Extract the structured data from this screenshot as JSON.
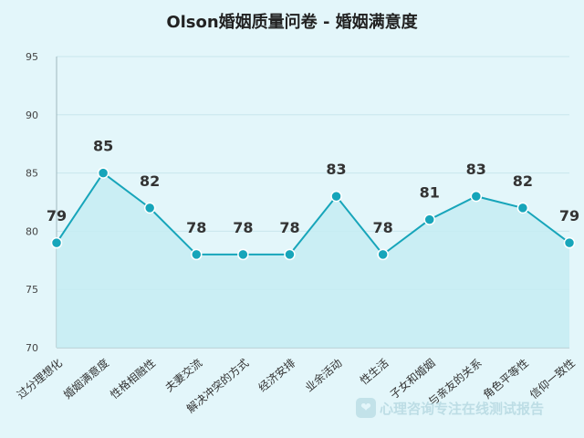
{
  "chart_data": {
    "type": "line",
    "title": "Olson婚姻质量问卷 - 婚姻满意度",
    "xlabel": "",
    "ylabel": "",
    "categories": [
      "过分理想化",
      "婚姻满意度",
      "性格相融性",
      "夫妻交流",
      "解决冲突的方式",
      "经济安排",
      "业余活动",
      "性生活",
      "子女和婚姻",
      "与亲友的关系",
      "角色平等性",
      "信仰一致性"
    ],
    "series": [
      {
        "values": [
          79,
          85,
          82,
          78,
          78,
          78,
          83,
          78,
          81,
          83,
          82,
          79
        ]
      }
    ],
    "ylim": [
      70,
      95
    ],
    "yticks": [
      70,
      75,
      80,
      85,
      90,
      95
    ],
    "grid": true,
    "area_fill": true,
    "colors": {
      "line": "#17a5ba",
      "point": "#17a5ba",
      "fill": "#c6ecf2",
      "grid": "#c9e6ec"
    }
  },
  "watermark": "心理咨询专注在线测试报告"
}
